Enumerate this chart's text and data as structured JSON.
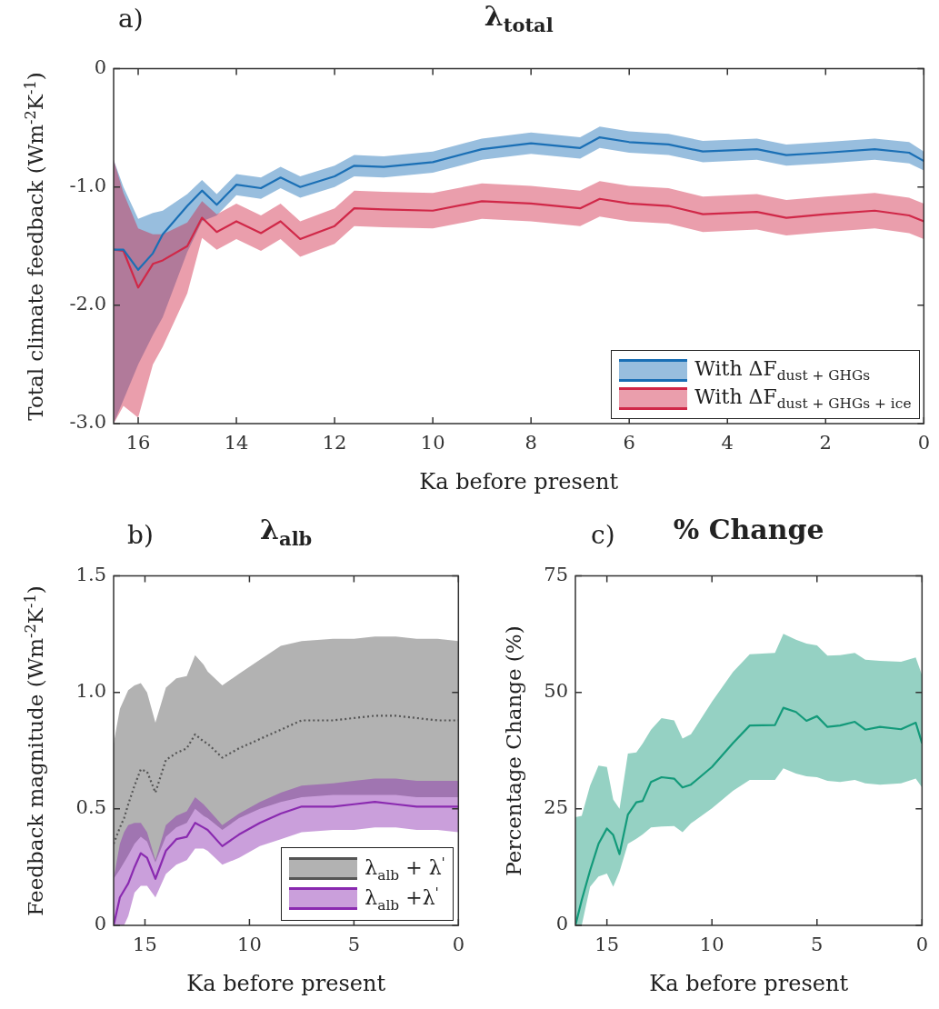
{
  "chart_data": [
    {
      "type": "line",
      "title": "λ$_{total}$",
      "annotations": [
        "a)"
      ],
      "xlabel": "Ka before present",
      "ylabel": "Total climate feedback (Wm$^{-2}$K$^{-1}$)",
      "xlim": [
        16.5,
        0
      ],
      "xticks": [
        16,
        14,
        12,
        10,
        8,
        6,
        4,
        2,
        0
      ],
      "ylim": [
        -3,
        0
      ],
      "yticks": [
        {
          "value": -3,
          "label": "-3.0"
        },
        {
          "value": -2,
          "label": "-2.0"
        },
        {
          "value": -1,
          "label": "-1.0"
        },
        0
      ],
      "legend": "bottom right",
      "grid": false,
      "series": [
        {
          "name": "With ΔF$_{dust + GHGs}$",
          "color": "#1a6fb5",
          "x": [
            16.5,
            16.3,
            16.0,
            15.7,
            15.5,
            15.0,
            14.7,
            14.4,
            14.0,
            13.5,
            13.1,
            12.7,
            12.0,
            11.6,
            11.0,
            10.0,
            9.0,
            8.0,
            7.0,
            6.6,
            6.0,
            5.2,
            4.5,
            3.4,
            2.8,
            2.0,
            1.0,
            0.3,
            0
          ],
          "values": [
            -1.53,
            -1.53,
            -1.7,
            -1.56,
            -1.4,
            -1.16,
            -1.03,
            -1.15,
            -0.98,
            -1.01,
            -0.92,
            -1.0,
            -0.91,
            -0.82,
            -0.83,
            -0.79,
            -0.68,
            -0.63,
            -0.67,
            -0.58,
            -0.62,
            -0.64,
            -0.7,
            -0.68,
            -0.73,
            -0.71,
            -0.68,
            -0.71,
            -0.78
          ],
          "upper": [
            -0.77,
            -1.0,
            -1.27,
            -1.22,
            -1.2,
            -1.06,
            -0.94,
            -1.06,
            -0.89,
            -0.92,
            -0.83,
            -0.91,
            -0.82,
            -0.73,
            -0.74,
            -0.7,
            -0.59,
            -0.54,
            -0.58,
            -0.49,
            -0.53,
            -0.55,
            -0.61,
            -0.59,
            -0.64,
            -0.62,
            -0.59,
            -0.62,
            -0.7
          ],
          "lower": [
            -3.0,
            -2.8,
            -2.5,
            -2.25,
            -2.1,
            -1.55,
            -1.29,
            -1.24,
            -1.07,
            -1.1,
            -1.01,
            -1.09,
            -1.0,
            -0.91,
            -0.92,
            -0.88,
            -0.77,
            -0.72,
            -0.76,
            -0.67,
            -0.71,
            -0.73,
            -0.79,
            -0.77,
            -0.82,
            -0.8,
            -0.77,
            -0.8,
            -0.86
          ]
        },
        {
          "name": "With ΔF$_{dust + GHGs + ice}$",
          "color": "#d02848",
          "x": [
            16.5,
            16.3,
            16.0,
            15.7,
            15.5,
            15.0,
            14.7,
            14.4,
            14.0,
            13.5,
            13.1,
            12.7,
            12.0,
            11.6,
            11.0,
            10.0,
            9.0,
            8.0,
            7.0,
            6.6,
            6.0,
            5.2,
            4.5,
            3.4,
            2.8,
            2.0,
            1.0,
            0.3,
            0
          ],
          "values": [
            -1.53,
            -1.54,
            -1.85,
            -1.65,
            -1.62,
            -1.5,
            -1.26,
            -1.38,
            -1.29,
            -1.39,
            -1.29,
            -1.44,
            -1.33,
            -1.18,
            -1.19,
            -1.2,
            -1.12,
            -1.14,
            -1.18,
            -1.1,
            -1.14,
            -1.16,
            -1.23,
            -1.21,
            -1.26,
            -1.23,
            -1.2,
            -1.24,
            -1.29
          ],
          "upper": [
            -0.77,
            -1.05,
            -1.35,
            -1.4,
            -1.4,
            -1.3,
            -1.12,
            -1.23,
            -1.14,
            -1.24,
            -1.14,
            -1.29,
            -1.18,
            -1.03,
            -1.04,
            -1.05,
            -0.97,
            -0.99,
            -1.03,
            -0.95,
            -0.99,
            -1.01,
            -1.08,
            -1.06,
            -1.11,
            -1.08,
            -1.05,
            -1.09,
            -1.14
          ],
          "lower": [
            -3.0,
            -2.85,
            -2.95,
            -2.5,
            -2.35,
            -1.9,
            -1.43,
            -1.53,
            -1.44,
            -1.54,
            -1.44,
            -1.59,
            -1.48,
            -1.33,
            -1.34,
            -1.35,
            -1.27,
            -1.29,
            -1.33,
            -1.25,
            -1.29,
            -1.31,
            -1.38,
            -1.36,
            -1.41,
            -1.38,
            -1.35,
            -1.39,
            -1.44
          ]
        }
      ]
    },
    {
      "type": "line",
      "title": "λ$_{alb}$",
      "annotations": [
        "b)"
      ],
      "xlabel": "Ka before present",
      "ylabel": "Feedback magnitude (Wm$^{-2}$K$^{-1}$)",
      "xlim": [
        16.5,
        0
      ],
      "xticks": [
        15,
        10,
        5,
        0
      ],
      "ylim": [
        0,
        1.5
      ],
      "yticks": [
        0,
        0.5,
        {
          "value": 1,
          "label": "1.0"
        },
        1.5
      ],
      "legend": "bottom right",
      "grid": false,
      "series": [
        {
          "name": "λ$_{alb}$ + λ$^{'}$",
          "color": "#555555",
          "line_style": "dotted",
          "x": [
            16.5,
            16.2,
            16.0,
            15.8,
            15.5,
            15.2,
            14.9,
            14.5,
            14.0,
            13.5,
            13.0,
            12.6,
            12.2,
            12.0,
            11.3,
            10.5,
            9.5,
            8.5,
            7.5,
            6.0,
            5.0,
            4.0,
            3.0,
            2.0,
            1.0,
            0
          ],
          "values": [
            0.35,
            0.42,
            0.46,
            0.52,
            0.6,
            0.67,
            0.66,
            0.57,
            0.71,
            0.74,
            0.76,
            0.82,
            0.79,
            0.78,
            0.72,
            0.76,
            0.8,
            0.84,
            0.88,
            0.88,
            0.89,
            0.9,
            0.9,
            0.89,
            0.88,
            0.88
          ],
          "upper": [
            0.78,
            0.93,
            0.97,
            1.01,
            1.03,
            1.04,
            1.0,
            0.87,
            1.02,
            1.06,
            1.07,
            1.16,
            1.12,
            1.09,
            1.03,
            1.08,
            1.14,
            1.2,
            1.22,
            1.23,
            1.23,
            1.24,
            1.24,
            1.23,
            1.23,
            1.22
          ],
          "lower": [
            0.2,
            0.24,
            0.27,
            0.3,
            0.35,
            0.38,
            0.36,
            0.27,
            0.38,
            0.42,
            0.44,
            0.5,
            0.47,
            0.46,
            0.41,
            0.46,
            0.5,
            0.53,
            0.55,
            0.56,
            0.56,
            0.56,
            0.56,
            0.55,
            0.55,
            0.55
          ]
        },
        {
          "name": "λ$_{alb}$ +λ$^{'}$",
          "color": "#8a2ab0",
          "x": [
            16.5,
            16.2,
            16.0,
            15.8,
            15.5,
            15.2,
            14.9,
            14.5,
            14.0,
            13.5,
            13.0,
            12.6,
            12.2,
            12.0,
            11.3,
            10.5,
            9.5,
            8.5,
            7.5,
            6.0,
            5.0,
            4.0,
            3.0,
            2.0,
            1.0,
            0
          ],
          "values": [
            0.0,
            0.12,
            0.15,
            0.18,
            0.25,
            0.31,
            0.29,
            0.2,
            0.32,
            0.37,
            0.38,
            0.44,
            0.42,
            0.41,
            0.34,
            0.39,
            0.44,
            0.48,
            0.51,
            0.51,
            0.52,
            0.53,
            0.52,
            0.51,
            0.51,
            0.51
          ],
          "upper": [
            0.2,
            0.35,
            0.4,
            0.43,
            0.44,
            0.44,
            0.4,
            0.28,
            0.43,
            0.47,
            0.49,
            0.55,
            0.52,
            0.5,
            0.43,
            0.48,
            0.53,
            0.57,
            0.6,
            0.61,
            0.62,
            0.63,
            0.63,
            0.62,
            0.62,
            0.62
          ],
          "lower": [
            0.0,
            0.0,
            0.0,
            0.04,
            0.14,
            0.17,
            0.17,
            0.12,
            0.22,
            0.26,
            0.28,
            0.33,
            0.33,
            0.32,
            0.26,
            0.29,
            0.34,
            0.37,
            0.4,
            0.41,
            0.41,
            0.42,
            0.42,
            0.41,
            0.41,
            0.4
          ]
        }
      ]
    },
    {
      "type": "line",
      "title": "% Change",
      "annotations": [
        "c)"
      ],
      "xlabel": "Ka before present",
      "ylabel": "Percentage Change (%)",
      "xlim": [
        16.5,
        0
      ],
      "xticks": [
        15,
        10,
        5,
        0
      ],
      "ylim": [
        0,
        75
      ],
      "yticks": [
        0,
        25,
        50,
        75
      ],
      "grid": false,
      "series": [
        {
          "color": "#139a7a",
          "x": [
            16.5,
            16.2,
            15.8,
            15.4,
            15.0,
            14.7,
            14.4,
            14.0,
            13.6,
            13.3,
            12.9,
            12.4,
            11.8,
            11.4,
            11.0,
            10.0,
            9.0,
            8.2,
            7.0,
            6.6,
            6.0,
            5.5,
            5.0,
            4.5,
            3.9,
            3.2,
            2.7,
            2.0,
            1.0,
            0.3,
            0
          ],
          "values": [
            0,
            5.4,
            11.8,
            17.5,
            20.8,
            19.4,
            15.3,
            23.8,
            26.4,
            26.7,
            30.8,
            31.8,
            31.5,
            29.6,
            30.2,
            34.0,
            39.1,
            42.9,
            43.0,
            46.7,
            45.8,
            43.9,
            44.9,
            42.6,
            42.9,
            43.7,
            42.0,
            42.6,
            42.1,
            43.5,
            39.1
          ],
          "upper": [
            23.2,
            23.5,
            30,
            34.3,
            34.0,
            27.0,
            25,
            36.9,
            37.1,
            39,
            42,
            44.5,
            44.0,
            40.1,
            41.0,
            48.0,
            54.4,
            58.2,
            58.5,
            62.6,
            61.3,
            60.5,
            60.1,
            57.9,
            58.0,
            58.5,
            57.0,
            56.8,
            56.6,
            57.5,
            53.7
          ],
          "lower": [
            0,
            0,
            8.3,
            10.5,
            11.1,
            8.3,
            11.5,
            17.5,
            18.6,
            19.5,
            21.0,
            21.2,
            21.3,
            20.0,
            21.9,
            25.1,
            28.9,
            31.2,
            31.2,
            33.7,
            32.6,
            32.0,
            31.8,
            31.0,
            30.8,
            31.2,
            30.5,
            30.2,
            30.5,
            31.5,
            29.6
          ]
        }
      ]
    }
  ]
}
